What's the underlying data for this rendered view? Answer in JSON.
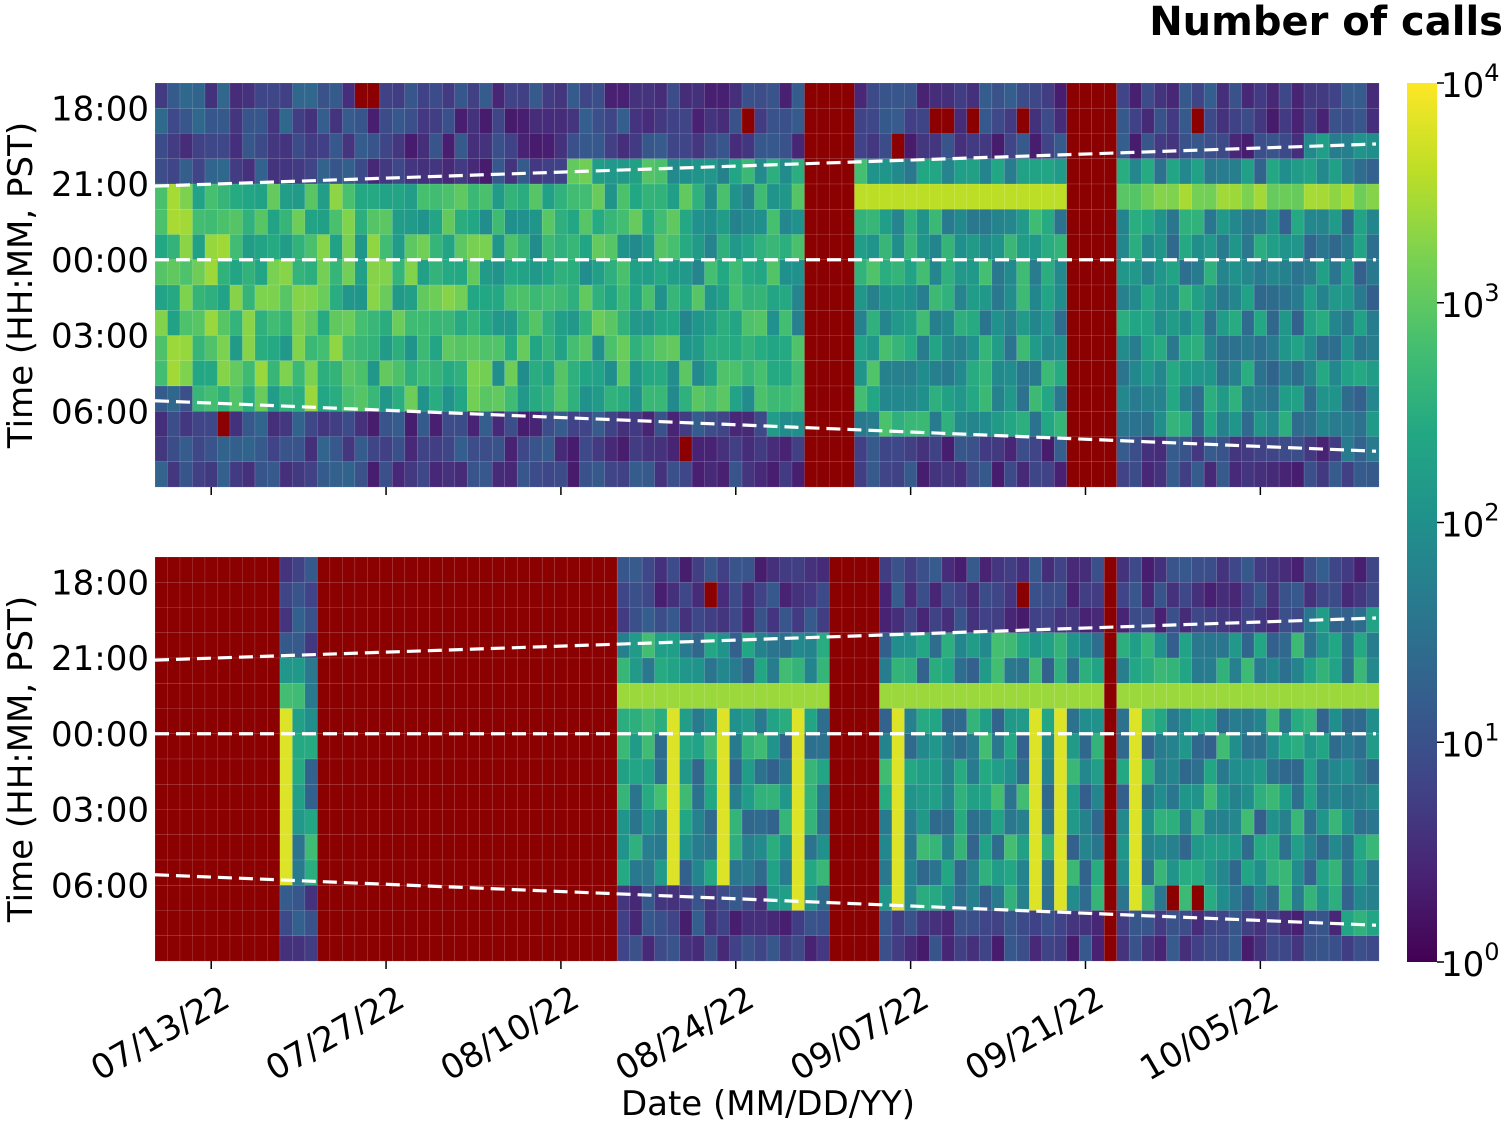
{
  "chart_data": {
    "type": "heatmap",
    "colorbar": {
      "title": "Number of calls",
      "scale": "log",
      "range": [
        1,
        10000
      ],
      "colormap": "viridis",
      "tick_base": "10",
      "tick_exponents": [
        "0",
        "1",
        "2",
        "3",
        "4"
      ],
      "missing_color": "#8b0000"
    },
    "x_axis": {
      "label": "Date (MM/DD/YY)",
      "range": [
        "07/09/22",
        "10/15/22"
      ],
      "tick_labels": [
        "07/13/22",
        "07/27/22",
        "08/10/22",
        "08/24/22",
        "09/07/22",
        "09/21/22",
        "10/05/22"
      ],
      "tick_dates": [
        "2022-07-13",
        "2022-07-27",
        "2022-08-10",
        "2022-08-24",
        "2022-09-07",
        "2022-09-21",
        "2022-10-05"
      ]
    },
    "y_axis": {
      "label": "Time (HH:MM, PST)",
      "tick_labels": [
        "18:00",
        "21:00",
        "00:00",
        "03:00",
        "06:00"
      ],
      "range_hours": [
        "17:00",
        "09:00"
      ]
    },
    "dashed_lines": [
      {
        "kind": "sunset",
        "from": "21:05",
        "to": "19:25"
      },
      {
        "kind": "midnight",
        "from": "00:00",
        "to": "00:00"
      },
      {
        "kind": "sunrise",
        "from": "05:35",
        "to": "07:35"
      }
    ],
    "panels": [
      {
        "id": "top",
        "missing_days": [
          [
            52,
            55
          ],
          [
            73,
            76
          ]
        ],
        "missing_spots": [
          [
            16,
            0
          ],
          [
            17,
            0
          ],
          [
            62,
            1
          ],
          [
            63,
            1
          ],
          [
            65,
            1
          ],
          [
            69,
            1
          ],
          [
            75,
            1
          ],
          [
            47,
            1
          ],
          [
            5,
            13
          ],
          [
            59,
            2
          ],
          [
            83,
            1
          ],
          [
            42,
            14
          ]
        ]
      },
      {
        "id": "bottom",
        "missing_days": [
          [
            0,
            9
          ],
          [
            13,
            36
          ],
          [
            54,
            57
          ],
          [
            76,
            76
          ]
        ],
        "missing_spots": [
          [
            44,
            1
          ],
          [
            69,
            1
          ],
          [
            81,
            13
          ],
          [
            83,
            13
          ],
          [
            99,
            12
          ]
        ]
      }
    ]
  }
}
